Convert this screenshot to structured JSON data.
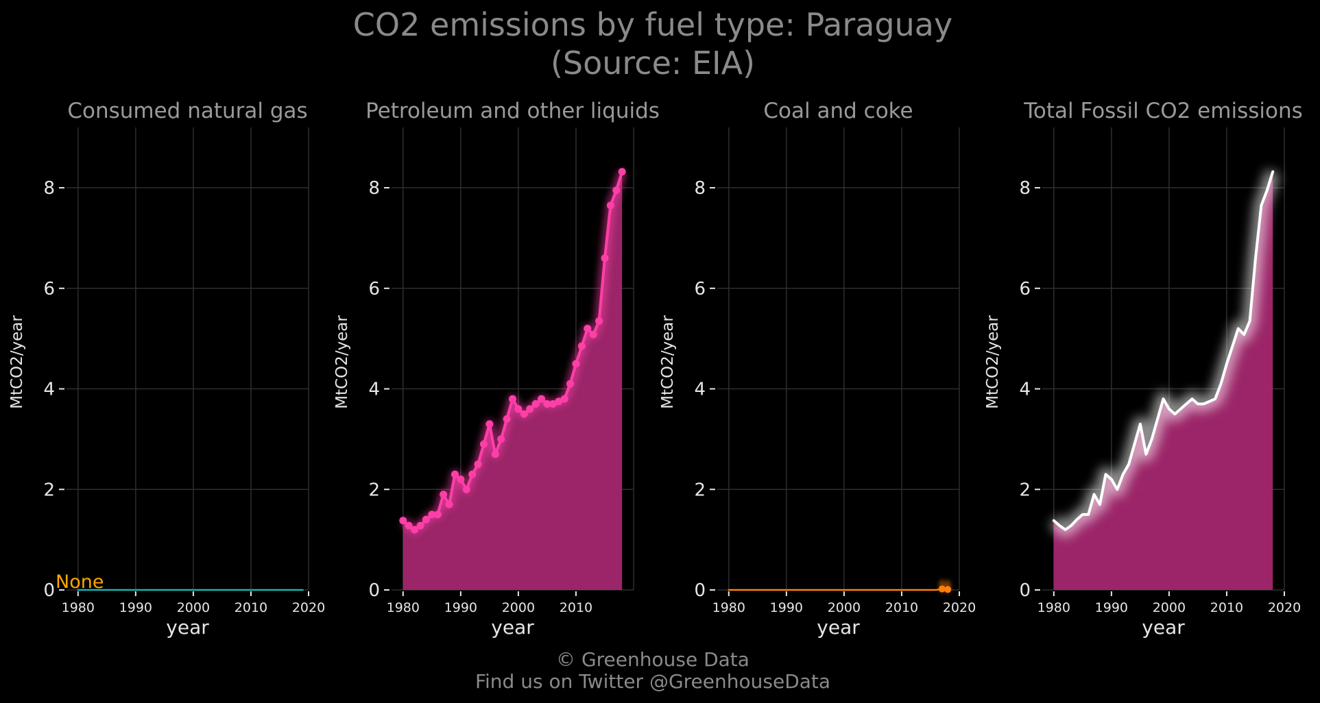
{
  "title_line1": "CO2 emissions by fuel type: Paraguay",
  "title_line2": "(Source: EIA)",
  "footer_line1": "© Greenhouse Data",
  "footer_line2": "Find us on Twitter @GreenhouseData",
  "colors": {
    "background": "#000000",
    "petroleum": "#ff3fa8",
    "fill": "#a3276e",
    "gas": "#17b3b3",
    "coal": "#ff7f0e",
    "total": "#ffffff",
    "none_label": "#ffa500"
  },
  "chart_data": [
    {
      "type": "line",
      "title": "Consumed natural gas",
      "xlabel": "year",
      "ylabel": "MtCO2/year",
      "xlim": [
        1978,
        2020
      ],
      "ylim": [
        0,
        9.2
      ],
      "xticks": [
        1980,
        1990,
        2000,
        2010,
        2020
      ],
      "yticks": [
        0,
        2,
        4,
        6,
        8
      ],
      "grid": true,
      "annotation": "None",
      "series": [
        {
          "x": [
            1980,
            2019
          ],
          "y": [
            0,
            0
          ],
          "style": "line",
          "color": "#17b3b3"
        }
      ]
    },
    {
      "type": "area",
      "title": "Petroleum and other liquids",
      "xlabel": "year",
      "ylabel": "MtCO2/year",
      "xlim": [
        1978,
        2020
      ],
      "ylim": [
        0,
        9.2
      ],
      "xticks": [
        1980,
        1990,
        2000,
        2010
      ],
      "yticks": [
        0,
        2,
        4,
        6,
        8
      ],
      "grid": true,
      "series": [
        {
          "x": [
            1980,
            1981,
            1982,
            1983,
            1984,
            1985,
            1986,
            1987,
            1988,
            1989,
            1990,
            1991,
            1992,
            1993,
            1994,
            1995,
            1996,
            1997,
            1998,
            1999,
            2000,
            2001,
            2002,
            2003,
            2004,
            2005,
            2006,
            2007,
            2008,
            2009,
            2010,
            2011,
            2012,
            2013,
            2014,
            2015,
            2016,
            2017,
            2018
          ],
          "y": [
            1.38,
            1.28,
            1.2,
            1.28,
            1.4,
            1.5,
            1.5,
            1.9,
            1.7,
            2.3,
            2.2,
            2.0,
            2.3,
            2.5,
            2.9,
            3.3,
            2.7,
            3.0,
            3.4,
            3.8,
            3.6,
            3.5,
            3.6,
            3.7,
            3.8,
            3.7,
            3.7,
            3.75,
            3.8,
            4.1,
            4.5,
            4.85,
            5.2,
            5.08,
            5.35,
            6.6,
            7.65,
            7.95,
            8.32
          ],
          "style": "line-markers-fill",
          "color": "#ff3fa8"
        }
      ]
    },
    {
      "type": "line",
      "title": "Coal and coke",
      "xlabel": "year",
      "ylabel": "MtCO2/year",
      "xlim": [
        1978,
        2020
      ],
      "ylim": [
        0,
        9.2
      ],
      "xticks": [
        1980,
        1990,
        2000,
        2010,
        2020
      ],
      "yticks": [
        0,
        2,
        4,
        6,
        8
      ],
      "grid": true,
      "series": [
        {
          "x": [
            1980,
            2016,
            2017,
            2018
          ],
          "y": [
            0,
            0,
            0.02,
            0.01
          ],
          "style": "line",
          "color": "#ff7f0e",
          "markers_x": [
            2017,
            2018
          ]
        }
      ]
    },
    {
      "type": "area",
      "title": "Total Fossil CO2 emissions",
      "xlabel": "year",
      "ylabel": "MtCO2/year",
      "xlim": [
        1978,
        2020
      ],
      "ylim": [
        0,
        9.2
      ],
      "xticks": [
        1980,
        1990,
        2000,
        2010,
        2020
      ],
      "yticks": [
        0,
        2,
        4,
        6,
        8
      ],
      "grid": true,
      "series": [
        {
          "x": [
            1980,
            1981,
            1982,
            1983,
            1984,
            1985,
            1986,
            1987,
            1988,
            1989,
            1990,
            1991,
            1992,
            1993,
            1994,
            1995,
            1996,
            1997,
            1998,
            1999,
            2000,
            2001,
            2002,
            2003,
            2004,
            2005,
            2006,
            2007,
            2008,
            2009,
            2010,
            2011,
            2012,
            2013,
            2014,
            2015,
            2016,
            2017,
            2018
          ],
          "y": [
            1.38,
            1.28,
            1.2,
            1.28,
            1.4,
            1.5,
            1.5,
            1.9,
            1.7,
            2.3,
            2.2,
            2.0,
            2.3,
            2.5,
            2.9,
            3.3,
            2.7,
            3.0,
            3.4,
            3.8,
            3.6,
            3.5,
            3.6,
            3.7,
            3.8,
            3.7,
            3.7,
            3.75,
            3.8,
            4.1,
            4.5,
            4.85,
            5.2,
            5.08,
            5.35,
            6.6,
            7.65,
            7.95,
            8.32
          ],
          "style": "line-fill",
          "color": "#ffffff"
        }
      ]
    }
  ]
}
